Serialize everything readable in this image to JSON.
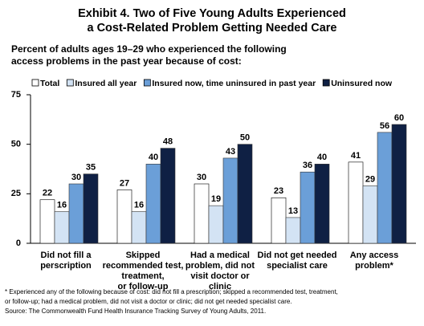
{
  "chart_data": {
    "type": "bar",
    "title": [
      "Exhibit 4. Two of Five Young Adults Experienced",
      "a Cost-Related Problem Getting Needed Care"
    ],
    "subtitle": [
      "Percent of adults ages 19–29 who experienced the following",
      "access problems in the past year because of cost:"
    ],
    "categories": [
      [
        "Did not fill a",
        "perscription"
      ],
      [
        "Skipped",
        "recommended test,",
        "treatment,",
        "or follow-up"
      ],
      [
        "Had a medical",
        "problem, did not",
        "visit doctor or",
        "clinic"
      ],
      [
        "Did not get needed",
        "specialist care"
      ],
      [
        "Any access",
        "problem*"
      ]
    ],
    "series": [
      {
        "name": "Total",
        "color": "#ffffff",
        "values": [
          22,
          27,
          30,
          23,
          41
        ]
      },
      {
        "name": "Insured all year",
        "color": "#d3e3f4",
        "values": [
          16,
          16,
          19,
          13,
          29
        ]
      },
      {
        "name": "Insured now, time uninsured in past year",
        "color": "#6b9fd8",
        "values": [
          30,
          40,
          43,
          36,
          56
        ]
      },
      {
        "name": "Uninsured now",
        "color": "#0f2044",
        "values": [
          35,
          48,
          50,
          40,
          60
        ]
      }
    ],
    "ylim": [
      0,
      75
    ],
    "yticks": [
      0,
      25,
      50,
      75
    ],
    "notes": [
      "* Experienced any of the following because of cost: did not fill a prescription; skipped a recommended test, treatment,",
      "or follow-up; had a medical problem, did not visit a doctor or clinic; did not get needed specialist care.",
      "Source: The Commonwealth Fund Health Insurance Tracking Survey of Young  Adults, 2011."
    ]
  }
}
